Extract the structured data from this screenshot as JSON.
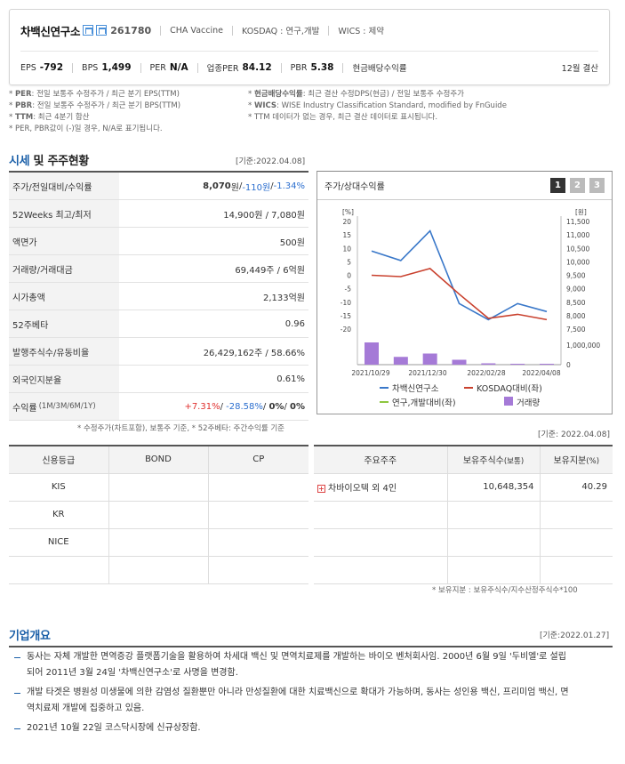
{
  "company": {
    "name": "차백신연구소",
    "code": "261780",
    "english_name": "CHA Vaccine",
    "market": "KOSDAQ : 연구,개발",
    "wics": "WICS : 제약"
  },
  "metrics": {
    "eps_label": "EPS",
    "eps": "-792",
    "bps_label": "BPS",
    "bps": "1,499",
    "per_label": "PER",
    "per": "N/A",
    "sector_per_label": "업종PER",
    "sector_per": "84.12",
    "pbr_label": "PBR",
    "pbr": "5.38",
    "dividend_label": "현금배당수익률",
    "settlement": "12월 결산"
  },
  "notes": {
    "left": [
      {
        "k": "PER",
        "v": ": 전일 보통주 수정주가 / 최근 분기 EPS(TTM)"
      },
      {
        "k": "PBR",
        "v": ": 전일 보통주 수정주가 / 최근 분기 BPS(TTM)"
      },
      {
        "k": "TTM",
        "v": ": 최근 4분기 합산"
      },
      {
        "k": "",
        "v": "PER, PBR값이 (-)일 경우, N/A로 표기됩니다."
      }
    ],
    "right": [
      {
        "k": "현금배당수익률",
        "v": ": 최근 결산 수정DPS(현금) / 전일 보통주 수정주가"
      },
      {
        "k": "WICS",
        "v": ": WISE Industry Classification Standard, modified by FnGuide"
      },
      {
        "k": "",
        "v": "TTM 데이터가 없는 경우, 최근 결산 데이터로 표시됩니다."
      }
    ]
  },
  "market_section": {
    "title_a": "시세",
    "title_b": " 및 주주현황",
    "basis": "[기준:2022.04.08]",
    "rows": [
      {
        "label": "주가/전일대비/수익률",
        "price": "8,070",
        "unit": "원",
        "sep1": " / ",
        "change": "-110원",
        "sep2": " / ",
        "rate": "-1.34%"
      },
      {
        "label": "52Weeks 최고/최저",
        "value": "14,900원 / 7,080원"
      },
      {
        "label": "액면가",
        "value": "500원"
      },
      {
        "label": "거래량/거래대금",
        "value": "69,449주 / 6억원"
      },
      {
        "label": "시가총액",
        "value": "2,133억원"
      },
      {
        "label": "52주베타",
        "value": "0.96"
      },
      {
        "label": "발행주식수/유동비율",
        "value": "26,429,162주 / 58.66%"
      },
      {
        "label": "외국인지분율",
        "value": "0.61%"
      },
      {
        "label": "수익률",
        "label_small": "(1M/3M/6M/1Y)",
        "r1": "+7.31%",
        "r2": "-28.58%",
        "r3": "0%",
        "r4": "0%"
      }
    ],
    "footnote": "* 수정주가(차트포함), 보통주 기준, * 52주베타: 주간수익률 기준"
  },
  "chart_panel": {
    "title": "주가/상대수익률",
    "tabs": [
      "1",
      "2",
      "3"
    ],
    "active_tab": "1"
  },
  "chart_data": {
    "type": "line",
    "x": [
      "2021/10/29",
      "2021/12/30",
      "2022/02/28",
      "2022/04/08"
    ],
    "left_axis": {
      "unit": "[%]",
      "ticks": [
        "20",
        "15",
        "10",
        "5",
        "0",
        "-5",
        "-10",
        "-15",
        "-20"
      ],
      "range": [
        -20,
        20
      ]
    },
    "right_axis": {
      "unit": "[원]",
      "ticks": [
        "11,500",
        "11,000",
        "10,500",
        "10,000",
        "9,500",
        "9,000",
        "8,500",
        "8,000",
        "7,500"
      ],
      "range": [
        7500,
        11500
      ]
    },
    "volume_axis": {
      "ticks": [
        "1,000,000",
        "0"
      ],
      "range": [
        0,
        1000000
      ]
    },
    "series": [
      {
        "name": "차백신연구소",
        "axis": "right",
        "color": "#3a78c9",
        "points": [
          [
            0,
            10400
          ],
          [
            1,
            10050
          ],
          [
            2,
            11150
          ],
          [
            3,
            8450
          ],
          [
            4,
            7850
          ],
          [
            5,
            8450
          ],
          [
            6,
            8150
          ]
        ]
      },
      {
        "name": "KOSDAQ대비(좌)",
        "axis": "left",
        "color": "#c9412e",
        "points": [
          [
            0,
            0
          ],
          [
            1,
            -0.5
          ],
          [
            2,
            2.5
          ],
          [
            3,
            -7
          ],
          [
            4,
            -16
          ],
          [
            5,
            -14.5
          ],
          [
            6,
            -16.5
          ]
        ]
      },
      {
        "name": "연구,개발대비(좌)",
        "axis": "left",
        "color": "#8dc63f",
        "points": []
      }
    ],
    "volume": {
      "name": "거래량",
      "color": "#a57ad7",
      "values": [
        1000000,
        350000,
        500000,
        220000,
        60000,
        40000,
        40000
      ]
    }
  },
  "credit_table": {
    "headers": [
      "신용등급",
      "BOND",
      "CP"
    ],
    "rows": [
      "KIS",
      "KR",
      "NICE",
      ""
    ]
  },
  "shareholder_table": {
    "basis": "[기준: 2022.04.08]",
    "headers": [
      "주요주주",
      "보유주식수",
      "(보통)",
      "보유지분",
      "(%)"
    ],
    "rows": [
      {
        "name": "차바이오텍 외 4인",
        "shares": "10,648,354",
        "pct": "40.29"
      }
    ],
    "footnote": "* 보유지분 : 보유주식수/지수산정주식수*100"
  },
  "overview": {
    "title": "기업개요",
    "basis": "[기준:2022.01.27]",
    "items": [
      [
        "동사는 자체 개발한 면역증강 플랫폼기술을 활용하여 차세대 백신 및 면역치료제를 개발하는 바이오 벤처회사임. 2000년 6월 9일 '두비엘'로 설립",
        "되어 2011년 3월 24일 '차백신연구소'로 사명을 변경함."
      ],
      [
        "개발 타겟은 병원성 미생물에 의한 감염성 질환뿐만 아니라 만성질환에 대한 치료백신으로 확대가 가능하며, 동사는 성인용 백신, 프리미엄 백신, 면",
        "역치료제 개발에 집중하고 있음."
      ],
      [
        "2021년 10월 22일 코스닥시장에 신규상장함."
      ]
    ]
  }
}
